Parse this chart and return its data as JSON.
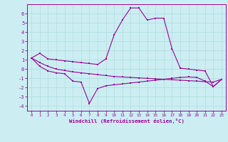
{
  "xlabel": "Windchill (Refroidissement éolien,°C)",
  "background_color": "#cceef2",
  "grid_color": "#aadddd",
  "line_color": "#990099",
  "x_hours": [
    0,
    1,
    2,
    3,
    4,
    5,
    6,
    7,
    8,
    9,
    10,
    11,
    12,
    13,
    14,
    15,
    16,
    17,
    18,
    19,
    20,
    21,
    22,
    23
  ],
  "line1": [
    1.2,
    1.7,
    1.1,
    1.0,
    0.9,
    0.8,
    0.7,
    0.6,
    0.5,
    1.1,
    3.7,
    5.3,
    6.6,
    6.6,
    5.3,
    5.5,
    5.5,
    2.2,
    0.1,
    0.0,
    -0.1,
    -0.2,
    -1.9,
    -1.1
  ],
  "line2": [
    1.2,
    0.7,
    0.3,
    0.0,
    -0.15,
    -0.3,
    -0.4,
    -0.5,
    -0.6,
    -0.7,
    -0.8,
    -0.85,
    -0.9,
    -0.95,
    -1.0,
    -1.05,
    -1.1,
    -1.15,
    -1.2,
    -1.25,
    -1.3,
    -1.35,
    -1.4,
    -1.1
  ],
  "line3": [
    1.2,
    0.3,
    -0.2,
    -0.4,
    -0.5,
    -1.3,
    -1.4,
    -3.7,
    -2.1,
    -1.8,
    -1.7,
    -1.6,
    -1.5,
    -1.4,
    -1.3,
    -1.2,
    -1.1,
    -1.0,
    -0.9,
    -0.85,
    -0.9,
    -1.3,
    -1.9,
    -1.1
  ],
  "ylim": [
    -4.5,
    7.0
  ],
  "yticks": [
    -4,
    -3,
    -2,
    -1,
    0,
    1,
    2,
    3,
    4,
    5,
    6
  ],
  "xticks": [
    0,
    1,
    2,
    3,
    4,
    5,
    6,
    7,
    8,
    9,
    10,
    11,
    12,
    13,
    14,
    15,
    16,
    17,
    18,
    19,
    20,
    21,
    22,
    23
  ]
}
